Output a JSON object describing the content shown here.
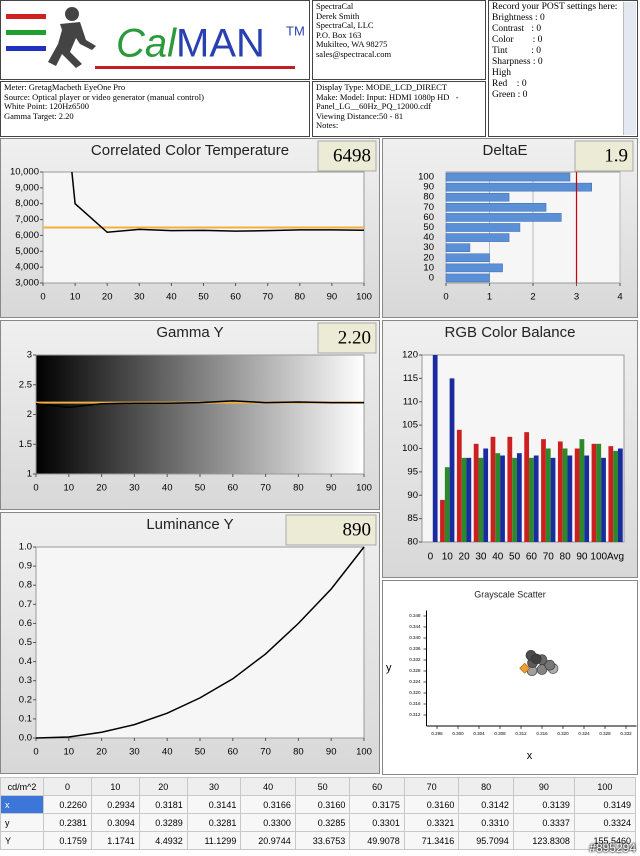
{
  "header": {
    "logo_a": "Cal",
    "logo_b": "MAN",
    "logo_tm": "TM",
    "contact": [
      "SpectraCal",
      "Derek Smith",
      "SpectraCal, LLC",
      "P.O. Box 163",
      "Mukilteo, WA 98275",
      "sales@spectracal.com"
    ],
    "post": [
      "Record your POST settings here:",
      "Brightness : 0",
      "Contrast   : 0",
      "Color        : 0",
      "Tint          : 0",
      "Sharpness : 0",
      "High",
      "Red    : 0",
      "Green : 0"
    ],
    "meter": [
      "Meter: GretagMacbeth EyeOne Pro",
      "Source: Optical player or video generator (manual control)",
      "White Point: 120Hz6500",
      "Gamma Target: 2.20"
    ],
    "display": [
      "Display Type: MODE_LCD_DIRECT",
      "Make: Model: Input: HDMI 1080p HD   -",
      "Panel_LG__60Hz_PQ_12000.cdf",
      "Viewing Distance:50 - 81",
      "Notes:"
    ]
  },
  "chart_data": [
    {
      "type": "line",
      "title": "Correlated Color Temperature",
      "value_box": "6498",
      "x": [
        9,
        10,
        20,
        30,
        40,
        50,
        60,
        70,
        80,
        90,
        100
      ],
      "values": [
        10000,
        8000,
        6200,
        6380,
        6300,
        6320,
        6270,
        6300,
        6350,
        6350,
        6330
      ],
      "color": "#000000",
      "target": 6500,
      "target_color": "#f0b040",
      "xlim": [
        0,
        100
      ],
      "xticks": [
        0,
        10,
        20,
        30,
        40,
        50,
        60,
        70,
        80,
        90,
        100
      ],
      "ylim": [
        3000,
        10000
      ],
      "yticks": [
        {
          "value": 3000,
          "label": "3,000"
        },
        {
          "value": 4000,
          "label": "4,000"
        },
        {
          "value": 5000,
          "label": "5,000"
        },
        {
          "value": 6000,
          "label": "6,000"
        },
        {
          "value": 7000,
          "label": "7,000"
        },
        {
          "value": 8000,
          "label": "8,000"
        },
        {
          "value": 9000,
          "label": "9,000"
        },
        {
          "value": 10000,
          "label": "10,000"
        }
      ]
    },
    {
      "type": "barh",
      "title": "DeltaE",
      "value_box": "1.9",
      "categories": [
        "100",
        "90",
        "80",
        "70",
        "60",
        "50",
        "40",
        "30",
        "20",
        "10",
        "0"
      ],
      "values": [
        2.85,
        3.35,
        1.45,
        2.3,
        2.65,
        1.7,
        1.45,
        0.55,
        1.0,
        1.3,
        1.0
      ],
      "color": "#5b8fd6",
      "threshold": 3,
      "threshold_color": "#cc0000",
      "xlim": [
        0,
        4
      ],
      "xticks": [
        0,
        1,
        2,
        3,
        4
      ]
    },
    {
      "type": "line",
      "title": "Gamma Y",
      "value_box": "2.20",
      "x": [
        0,
        10,
        20,
        30,
        40,
        50,
        60,
        70,
        80,
        90,
        100
      ],
      "values": [
        2.18,
        2.12,
        2.18,
        2.19,
        2.19,
        2.2,
        2.23,
        2.2,
        2.21,
        2.2,
        2.2
      ],
      "color": "#000000",
      "target": 2.2,
      "target_color": "#f0b040",
      "background_gradient": true,
      "xlim": [
        0,
        100
      ],
      "xticks": [
        0,
        10,
        20,
        30,
        40,
        50,
        60,
        70,
        80,
        90,
        100
      ],
      "ylim": [
        1,
        3
      ],
      "yticks": [
        1,
        1.5,
        2,
        2.5,
        3
      ]
    },
    {
      "type": "bar",
      "title": "RGB Color Balance",
      "categories": [
        "0",
        "10",
        "20",
        "30",
        "40",
        "50",
        "60",
        "70",
        "80",
        "90",
        "100",
        "Avg"
      ],
      "series": [
        {
          "color": "#cc2020",
          "values": [
            null,
            89,
            104,
            101,
            102.5,
            102.5,
            103.5,
            102,
            101.5,
            100,
            101,
            100.5
          ]
        },
        {
          "color": "#2a8a2a",
          "values": [
            null,
            96,
            98,
            98,
            99,
            98,
            98,
            100,
            100,
            102,
            101,
            99.5
          ]
        },
        {
          "color": "#1a2aa0",
          "values": [
            120,
            115,
            98,
            100,
            98.5,
            99,
            98.5,
            98,
            98.5,
            98.5,
            98,
            100
          ]
        }
      ],
      "ylim": [
        80,
        120
      ],
      "yticks": [
        80,
        85,
        90,
        95,
        100,
        105,
        110,
        115,
        120
      ]
    },
    {
      "type": "line",
      "title": "Luminance Y",
      "value_box": "890",
      "x": [
        0,
        10,
        20,
        30,
        40,
        50,
        60,
        70,
        80,
        90,
        100
      ],
      "values": [
        0,
        0.005,
        0.03,
        0.07,
        0.13,
        0.21,
        0.31,
        0.44,
        0.6,
        0.78,
        1.0
      ],
      "color": "#000000",
      "xlim": [
        0,
        100
      ],
      "xticks": [
        0,
        10,
        20,
        30,
        40,
        50,
        60,
        70,
        80,
        90,
        100
      ],
      "ylim": [
        0,
        1
      ],
      "yticks": [
        {
          "value": 0,
          "label": "0.0"
        },
        0.1,
        0.2,
        0.3,
        0.4,
        0.5,
        0.6,
        0.7,
        0.8,
        0.9,
        {
          "value": 1,
          "label": "1.0"
        }
      ]
    },
    {
      "type": "scatter",
      "title": "Grayscale Scatter",
      "xlabel": "x",
      "ylabel": "y",
      "target": [
        0.3127,
        0.329
      ],
      "target_color": "#f0a030",
      "xlim": [
        0.294,
        0.334
      ],
      "xticks": [
        0.296,
        {
          "value": 0.3,
          "label": "0.300"
        },
        0.304,
        0.308,
        0.312,
        0.316,
        {
          "value": 0.32,
          "label": "0.320"
        },
        0.324,
        0.328,
        0.332
      ],
      "ylim": [
        0.308,
        0.35
      ],
      "yticks": [
        0.312,
        0.316,
        {
          "value": 0.32,
          "label": "0.320"
        },
        0.324,
        0.328,
        0.332,
        0.336,
        {
          "value": 0.34,
          "label": "0.340"
        },
        0.344,
        0.348
      ]
    }
  ],
  "table": {
    "header": [
      "cd/m^2",
      "0",
      "10",
      "20",
      "30",
      "40",
      "50",
      "60",
      "70",
      "80",
      "90",
      "100"
    ],
    "rows": [
      {
        "label": "x",
        "cells": [
          "0.2260",
          "0.2934",
          "0.3181",
          "0.3141",
          "0.3166",
          "0.3160",
          "0.3175",
          "0.3160",
          "0.3142",
          "0.3139",
          "0.3149"
        ]
      },
      {
        "label": "y",
        "cells": [
          "0.2381",
          "0.3094",
          "0.3289",
          "0.3281",
          "0.3300",
          "0.3285",
          "0.3301",
          "0.3321",
          "0.3310",
          "0.3337",
          "0.3324"
        ]
      },
      {
        "label": "Y",
        "cells": [
          "0.1759",
          "1.1741",
          "4.4932",
          "11.1299",
          "20.9744",
          "33.6753",
          "49.9078",
          "71.3416",
          "95.7094",
          "123.8308",
          "155.5460"
        ]
      }
    ]
  },
  "watermark": "#895294"
}
